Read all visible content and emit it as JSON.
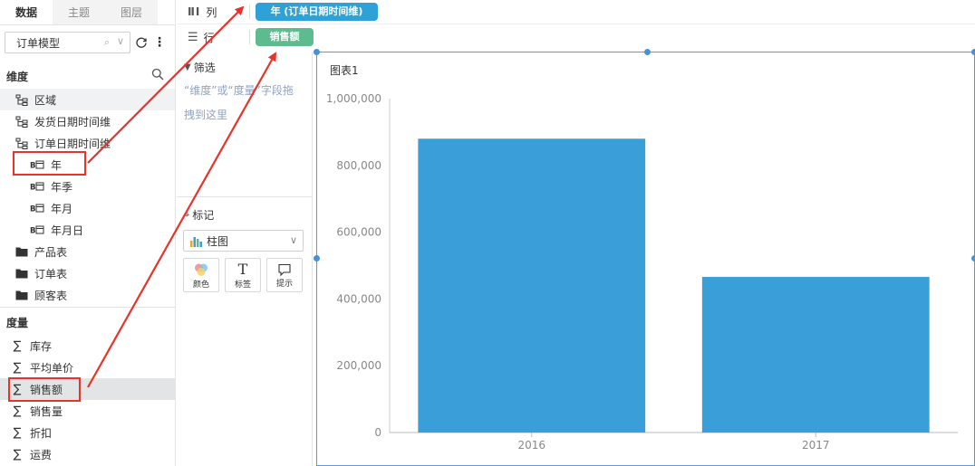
{
  "left_panel": {
    "tabs": [
      "数据",
      "主题",
      "图层"
    ],
    "model": "订单模型",
    "dimensions_title": "维度",
    "dimensions": [
      {
        "label": "区域",
        "icon": "hierarchy-icon"
      },
      {
        "label": "发货日期时间维",
        "icon": "hierarchy-icon"
      },
      {
        "label": "订单日期时间维",
        "icon": "hierarchy-icon"
      },
      {
        "label": "年",
        "icon": "calendar-field-icon"
      },
      {
        "label": "年季",
        "icon": "calendar-field-icon"
      },
      {
        "label": "年月",
        "icon": "calendar-field-icon"
      },
      {
        "label": "年月日",
        "icon": "calendar-field-icon"
      },
      {
        "label": "产品表",
        "icon": "folder-icon"
      },
      {
        "label": "订单表",
        "icon": "folder-icon"
      },
      {
        "label": "顾客表",
        "icon": "folder-icon"
      }
    ],
    "measures_title": "度量",
    "measures": [
      "库存",
      "平均单价",
      "销售额",
      "销售量",
      "折扣",
      "运费"
    ]
  },
  "shelves": {
    "columns_label": "列",
    "columns_pill": "年 (订单日期时间维)",
    "rows_label": "行",
    "rows_pill": "销售额"
  },
  "filter": {
    "title": "筛选",
    "hint": "“维度”或“度量”字段拖拽到这里"
  },
  "marks": {
    "title": "标记",
    "chart_type": "柱图",
    "buttons": [
      "颜色",
      "标签",
      "提示"
    ]
  },
  "colors": {
    "bar": "#3a9fd8",
    "pill_column": "#2ea1d8",
    "pill_row": "#5dbb8f",
    "annotation_arrow": "#e8332a"
  },
  "chart_data": {
    "type": "bar",
    "title": "图表1",
    "categories": [
      "2016",
      "2017"
    ],
    "values": [
      880000,
      466000
    ],
    "ylim": [
      0,
      1000000
    ],
    "yticks": [
      0,
      200000,
      400000,
      600000,
      800000,
      1000000
    ],
    "ytick_labels": [
      "0",
      "200,000",
      "400,000",
      "600,000",
      "800,000",
      "1,000,000"
    ],
    "grid": false
  }
}
